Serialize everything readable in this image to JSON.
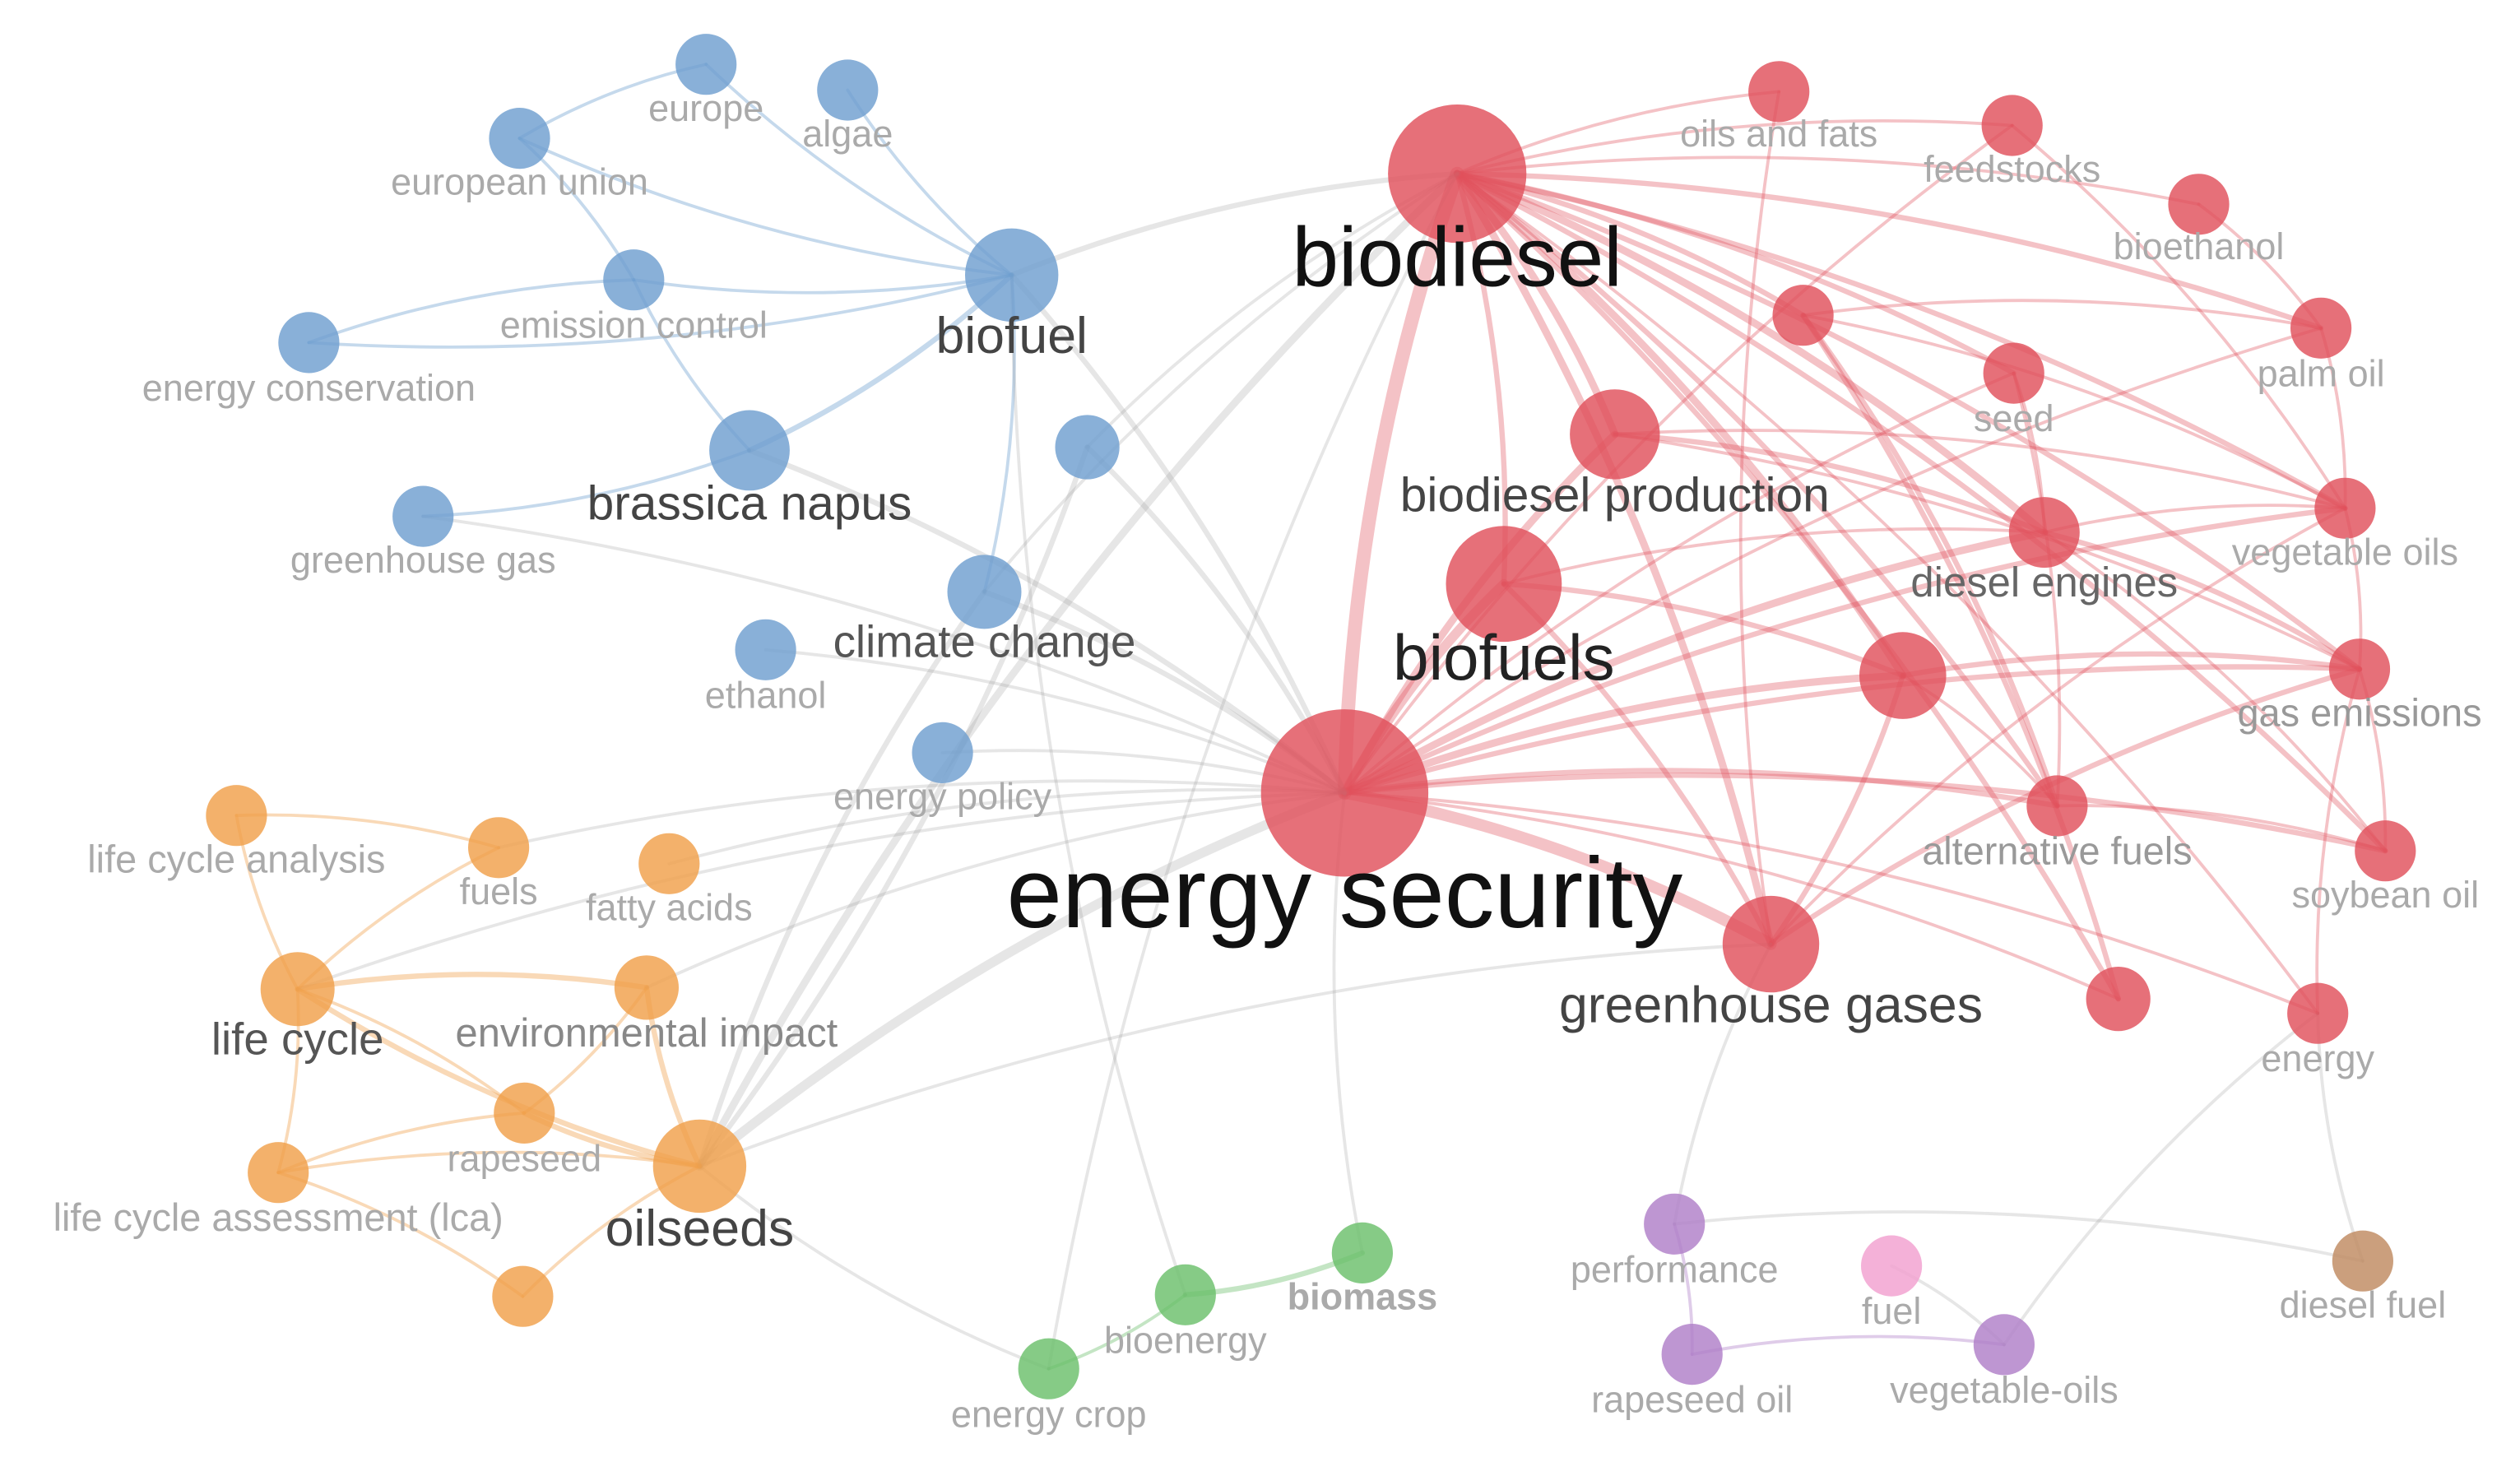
{
  "colors": {
    "blue": "#6f9fcf",
    "red": "#e0505c",
    "orange": "#f0a04a",
    "green": "#6bbf6b",
    "purple": "#b07fc8",
    "pink": "#f2a0d0",
    "brown": "#c08a60",
    "edge": "#9a9a9a"
  },
  "network": {
    "nodes": [
      {
        "id": "energy-security",
        "label": "energy security",
        "cluster": "red",
        "weight": 10
      },
      {
        "id": "biodiesel",
        "label": "biodiesel",
        "cluster": "red",
        "weight": 8
      },
      {
        "id": "biofuels",
        "label": "biofuels",
        "cluster": "red",
        "weight": 7
      },
      {
        "id": "biodiesel-production",
        "label": "biodiesel production",
        "cluster": "red",
        "weight": 5
      },
      {
        "id": "greenhouse-gases",
        "label": "greenhouse gases",
        "cluster": "red",
        "weight": 6
      },
      {
        "id": "diesel-engines",
        "label": "diesel engines",
        "cluster": "red",
        "weight": 4
      },
      {
        "id": "oils-and-fats",
        "label": "oils and fats",
        "cluster": "red",
        "weight": 3
      },
      {
        "id": "feedstocks",
        "label": "feedstocks",
        "cluster": "red",
        "weight": 3
      },
      {
        "id": "bioethanol",
        "label": "bioethanol",
        "cluster": "red",
        "weight": 3
      },
      {
        "id": "palm-oil",
        "label": "palm oil",
        "cluster": "red",
        "weight": 3
      },
      {
        "id": "seed",
        "label": "seed",
        "cluster": "red",
        "weight": 3
      },
      {
        "id": "vegetable-oils",
        "label": "vegetable oils",
        "cluster": "red",
        "weight": 3
      },
      {
        "id": "gas-emissions",
        "label": "gas emissions",
        "cluster": "red",
        "weight": 3
      },
      {
        "id": "alternative-fuels",
        "label": "alternative fuels",
        "cluster": "red",
        "weight": 3
      },
      {
        "id": "soybean-oil",
        "label": "soybean oil",
        "cluster": "red",
        "weight": 3
      },
      {
        "id": "energy",
        "label": "energy",
        "cluster": "red",
        "weight": 3
      },
      {
        "id": "red-a",
        "label": "",
        "cluster": "red",
        "weight": 3
      },
      {
        "id": "red-b",
        "label": "",
        "cluster": "red",
        "weight": 4
      },
      {
        "id": "red-c",
        "label": "",
        "cluster": "red",
        "weight": 3
      },
      {
        "id": "biofuel",
        "label": "biofuel",
        "cluster": "blue",
        "weight": 5
      },
      {
        "id": "brassica-napus",
        "label": "brassica napus",
        "cluster": "blue",
        "weight": 4
      },
      {
        "id": "climate-change",
        "label": "climate change",
        "cluster": "blue",
        "weight": 4
      },
      {
        "id": "europe",
        "label": "europe",
        "cluster": "blue",
        "weight": 3
      },
      {
        "id": "algae",
        "label": "algae",
        "cluster": "blue",
        "weight": 3
      },
      {
        "id": "european-union",
        "label": "european union",
        "cluster": "blue",
        "weight": 3
      },
      {
        "id": "emission-control",
        "label": "emission control",
        "cluster": "blue",
        "weight": 3
      },
      {
        "id": "energy-conservation",
        "label": "energy conservation",
        "cluster": "blue",
        "weight": 3
      },
      {
        "id": "greenhouse-gas",
        "label": "greenhouse gas",
        "cluster": "blue",
        "weight": 3
      },
      {
        "id": "ethanol",
        "label": "ethanol",
        "cluster": "blue",
        "weight": 3
      },
      {
        "id": "energy-policy",
        "label": "energy policy",
        "cluster": "blue",
        "weight": 3
      },
      {
        "id": "blue-a",
        "label": "",
        "cluster": "blue",
        "weight": 3
      },
      {
        "id": "oilseeds",
        "label": "oilseeds",
        "cluster": "orange",
        "weight": 5
      },
      {
        "id": "life-cycle",
        "label": "life cycle",
        "cluster": "orange",
        "weight": 4
      },
      {
        "id": "environmental-impact",
        "label": "environmental impact",
        "cluster": "orange",
        "weight": 3
      },
      {
        "id": "life-cycle-analysis",
        "label": "life cycle analysis",
        "cluster": "orange",
        "weight": 3
      },
      {
        "id": "fuels",
        "label": "fuels",
        "cluster": "orange",
        "weight": 3
      },
      {
        "id": "fatty-acids",
        "label": "fatty acids",
        "cluster": "orange",
        "weight": 3
      },
      {
        "id": "rapeseed",
        "label": "rapeseed",
        "cluster": "orange",
        "weight": 3
      },
      {
        "id": "life-cycle-assessment",
        "label": "life cycle assessment (lca)",
        "cluster": "orange",
        "weight": 3
      },
      {
        "id": "orange-a",
        "label": "",
        "cluster": "orange",
        "weight": 3
      },
      {
        "id": "biomass",
        "label": "biomass",
        "cluster": "green",
        "weight": 3
      },
      {
        "id": "bioenergy",
        "label": "bioenergy",
        "cluster": "green",
        "weight": 3
      },
      {
        "id": "energy-crop",
        "label": "energy crop",
        "cluster": "green",
        "weight": 3
      },
      {
        "id": "performance",
        "label": "performance",
        "cluster": "purple",
        "weight": 3
      },
      {
        "id": "rapeseed-oil",
        "label": "rapeseed oil",
        "cluster": "purple",
        "weight": 3
      },
      {
        "id": "vegetable-oils-2",
        "label": "vegetable-oils",
        "cluster": "purple",
        "weight": 3
      },
      {
        "id": "fuel",
        "label": "fuel",
        "cluster": "pink",
        "weight": 3
      },
      {
        "id": "diesel-fuel",
        "label": "diesel fuel",
        "cluster": "brown",
        "weight": 3
      }
    ]
  }
}
